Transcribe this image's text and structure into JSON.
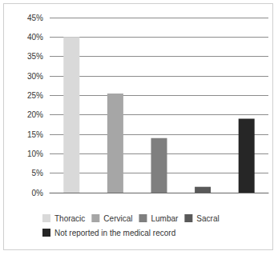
{
  "chart_data": {
    "type": "bar",
    "categories": [
      "Thoracic",
      "Cervical",
      "Lumbar",
      "Sacral",
      "Not reported in the medical record"
    ],
    "values": [
      40,
      25.5,
      14,
      1.5,
      19
    ],
    "colors": [
      "#d9d9d9",
      "#a6a6a6",
      "#7f7f7f",
      "#595959",
      "#262626"
    ],
    "ylim": [
      0,
      45
    ],
    "yticks": [
      {
        "value": 0,
        "label": "0%"
      },
      {
        "value": 5,
        "label": "5%"
      },
      {
        "value": 10,
        "label": "10%"
      },
      {
        "value": 15,
        "label": "15%"
      },
      {
        "value": 20,
        "label": "20%"
      },
      {
        "value": 25,
        "label": "25%"
      },
      {
        "value": 30,
        "label": "30%"
      },
      {
        "value": 35,
        "label": "35%"
      },
      {
        "value": 40,
        "label": "40%"
      },
      {
        "value": 45,
        "label": "45%"
      }
    ],
    "grid": true,
    "legend": "bottom",
    "tick_labels": "y"
  }
}
